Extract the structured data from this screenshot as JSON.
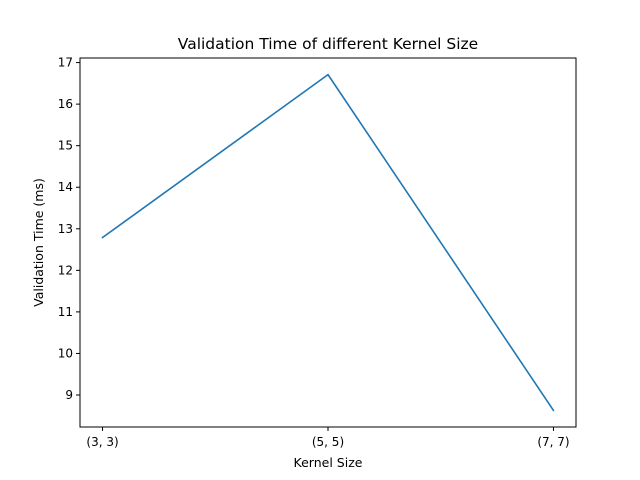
{
  "chart_data": {
    "type": "line",
    "title": "Validation Time of different Kernel Size",
    "xlabel": "Kernel Size",
    "ylabel": "Validation Time (ms)",
    "categories": [
      "(3, 3)",
      "(5, 5)",
      "(7, 7)"
    ],
    "series": [
      {
        "values": [
          12.79,
          16.71,
          8.63
        ],
        "color": "#1f77b4"
      }
    ],
    "ylim": [
      8.23,
      17.11
    ],
    "yticks": [
      9,
      10,
      11,
      12,
      13,
      14,
      15,
      16,
      17
    ],
    "grid": false,
    "legend": "none"
  }
}
